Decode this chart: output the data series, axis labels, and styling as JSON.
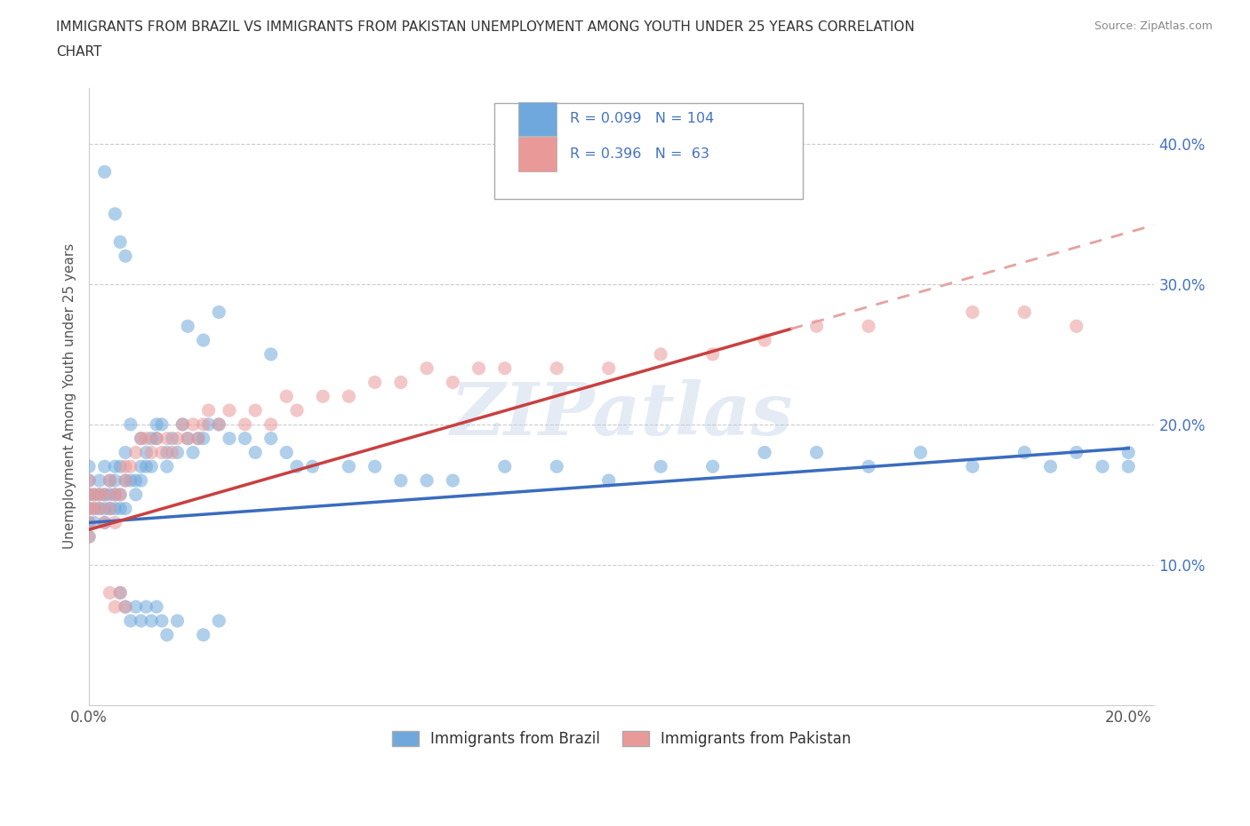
{
  "title_line1": "IMMIGRANTS FROM BRAZIL VS IMMIGRANTS FROM PAKISTAN UNEMPLOYMENT AMONG YOUTH UNDER 25 YEARS CORRELATION",
  "title_line2": "CHART",
  "source_text": "Source: ZipAtlas.com",
  "ylabel": "Unemployment Among Youth under 25 years",
  "brazil_color": "#6fa8dc",
  "pakistan_color": "#ea9999",
  "brazil_line_color": "#3a6cbf",
  "pakistan_line_color": "#c94040",
  "pakistan_line_color_dashed": "#e8a0a0",
  "watermark": "ZIPatlas",
  "brazil_label": "Immigrants from Brazil",
  "pakistan_label": "Immigrants from Pakistan",
  "xmin": 0.0,
  "xmax": 0.205,
  "ymin": 0.0,
  "ymax": 0.44,
  "grid_color": "#cccccc",
  "background_color": "#ffffff",
  "brazil_scatter_x": [
    0.0,
    0.0,
    0.0,
    0.0,
    0.0,
    0.0,
    0.001,
    0.001,
    0.001,
    0.002,
    0.002,
    0.002,
    0.003,
    0.003,
    0.003,
    0.003,
    0.004,
    0.004,
    0.004,
    0.005,
    0.005,
    0.005,
    0.005,
    0.006,
    0.006,
    0.006,
    0.007,
    0.007,
    0.007,
    0.008,
    0.008,
    0.009,
    0.009,
    0.01,
    0.01,
    0.01,
    0.011,
    0.011,
    0.012,
    0.012,
    0.013,
    0.013,
    0.014,
    0.015,
    0.015,
    0.016,
    0.017,
    0.018,
    0.019,
    0.02,
    0.021,
    0.022,
    0.023,
    0.025,
    0.027,
    0.03,
    0.032,
    0.035,
    0.038,
    0.04,
    0.043,
    0.05,
    0.055,
    0.06,
    0.065,
    0.07,
    0.08,
    0.09,
    0.1,
    0.11,
    0.12,
    0.13,
    0.14,
    0.15,
    0.16,
    0.17,
    0.18,
    0.185,
    0.19,
    0.195,
    0.2,
    0.2,
    0.003,
    0.005,
    0.006,
    0.007,
    0.019,
    0.022,
    0.025,
    0.035,
    0.006,
    0.007,
    0.008,
    0.009,
    0.01,
    0.011,
    0.012,
    0.013,
    0.014,
    0.015,
    0.017,
    0.022,
    0.025
  ],
  "brazil_scatter_y": [
    0.14,
    0.15,
    0.13,
    0.12,
    0.16,
    0.17,
    0.15,
    0.14,
    0.13,
    0.15,
    0.14,
    0.16,
    0.15,
    0.14,
    0.13,
    0.17,
    0.16,
    0.14,
    0.15,
    0.17,
    0.15,
    0.16,
    0.14,
    0.17,
    0.15,
    0.14,
    0.16,
    0.14,
    0.18,
    0.16,
    0.2,
    0.16,
    0.15,
    0.17,
    0.16,
    0.19,
    0.17,
    0.18,
    0.19,
    0.17,
    0.2,
    0.19,
    0.2,
    0.17,
    0.18,
    0.19,
    0.18,
    0.2,
    0.19,
    0.18,
    0.19,
    0.19,
    0.2,
    0.2,
    0.19,
    0.19,
    0.18,
    0.19,
    0.18,
    0.17,
    0.17,
    0.17,
    0.17,
    0.16,
    0.16,
    0.16,
    0.17,
    0.17,
    0.16,
    0.17,
    0.17,
    0.18,
    0.18,
    0.17,
    0.18,
    0.17,
    0.18,
    0.17,
    0.18,
    0.17,
    0.18,
    0.17,
    0.38,
    0.35,
    0.33,
    0.32,
    0.27,
    0.26,
    0.28,
    0.25,
    0.08,
    0.07,
    0.06,
    0.07,
    0.06,
    0.07,
    0.06,
    0.07,
    0.06,
    0.05,
    0.06,
    0.05,
    0.06
  ],
  "pakistan_scatter_x": [
    0.0,
    0.0,
    0.0,
    0.0,
    0.0,
    0.001,
    0.001,
    0.002,
    0.002,
    0.003,
    0.003,
    0.004,
    0.004,
    0.005,
    0.005,
    0.006,
    0.007,
    0.007,
    0.008,
    0.009,
    0.01,
    0.011,
    0.012,
    0.013,
    0.014,
    0.015,
    0.016,
    0.017,
    0.018,
    0.019,
    0.02,
    0.021,
    0.022,
    0.023,
    0.025,
    0.027,
    0.03,
    0.032,
    0.035,
    0.038,
    0.04,
    0.045,
    0.05,
    0.055,
    0.06,
    0.065,
    0.07,
    0.075,
    0.08,
    0.09,
    0.1,
    0.11,
    0.12,
    0.13,
    0.14,
    0.15,
    0.17,
    0.18,
    0.19,
    0.004,
    0.005,
    0.006,
    0.007
  ],
  "pakistan_scatter_y": [
    0.15,
    0.14,
    0.13,
    0.12,
    0.16,
    0.15,
    0.14,
    0.15,
    0.14,
    0.15,
    0.13,
    0.16,
    0.14,
    0.15,
    0.13,
    0.15,
    0.17,
    0.16,
    0.17,
    0.18,
    0.19,
    0.19,
    0.18,
    0.19,
    0.18,
    0.19,
    0.18,
    0.19,
    0.2,
    0.19,
    0.2,
    0.19,
    0.2,
    0.21,
    0.2,
    0.21,
    0.2,
    0.21,
    0.2,
    0.22,
    0.21,
    0.22,
    0.22,
    0.23,
    0.23,
    0.24,
    0.23,
    0.24,
    0.24,
    0.24,
    0.24,
    0.25,
    0.25,
    0.26,
    0.27,
    0.27,
    0.28,
    0.28,
    0.27,
    0.08,
    0.07,
    0.08,
    0.07
  ]
}
